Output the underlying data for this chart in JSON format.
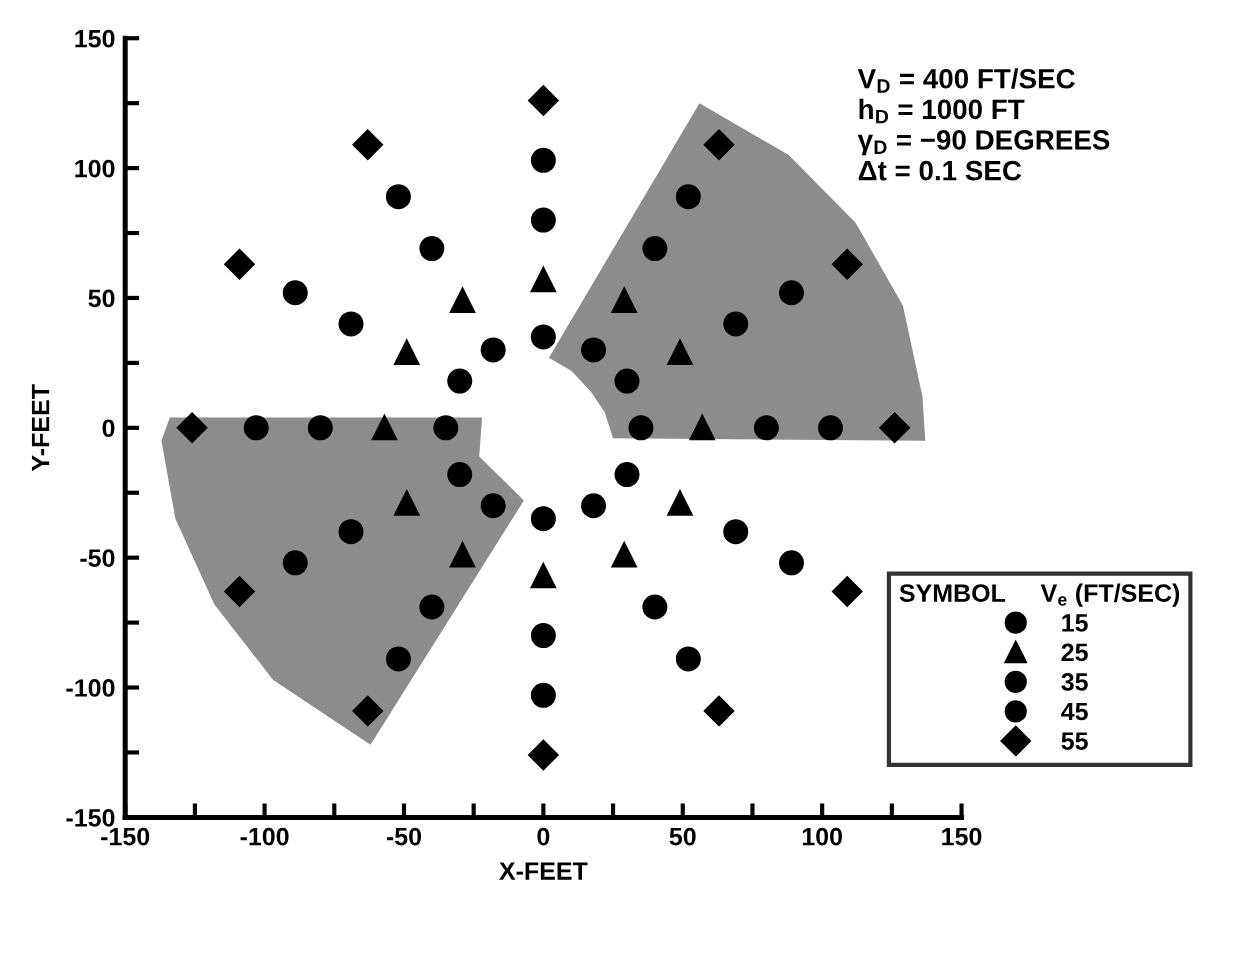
{
  "chart_data": {
    "type": "scatter",
    "xlabel": "X-FEET",
    "ylabel": "Y-FEET",
    "xlim": [
      -150,
      150
    ],
    "ylim": [
      -150,
      150
    ],
    "xticks": [
      -150,
      {
        "value": -125,
        "label": null
      },
      -100,
      {
        "value": -75,
        "label": null
      },
      -50,
      {
        "value": -25,
        "label": null
      },
      0,
      {
        "value": 25,
        "label": null
      },
      50,
      {
        "value": 75,
        "label": null
      },
      100,
      {
        "value": 125,
        "label": null
      },
      150
    ],
    "yticks": [
      -150,
      {
        "value": -125,
        "label": null
      },
      -100,
      {
        "value": -75,
        "label": null
      },
      -50,
      {
        "value": -25,
        "label": null
      },
      0,
      {
        "value": 25,
        "label": null
      },
      50,
      {
        "value": 75,
        "label": null
      },
      100,
      {
        "value": 125,
        "label": null
      },
      150
    ],
    "grid": false,
    "legend": "right",
    "legend_title": "SYMBOL     V$_{e}$ (FT/SEC)",
    "annotations": [
      "V$_{D}$ = 400 FT/SEC",
      "h$_{D}$ = 1000 FT",
      "γ$_{D}$ = −90 DEGREES",
      "Δt = 0.1 SEC"
    ],
    "series": [
      {
        "type": "area",
        "color": "#8c8c8c",
        "x": [
          56,
          88,
          112,
          129,
          136,
          137,
          25,
          22,
          17,
          10,
          2
        ],
        "values": [
          125,
          105,
          79,
          47,
          12,
          -5,
          -4,
          6,
          14,
          22,
          27
        ]
      },
      {
        "type": "area",
        "color": "#8c8c8c",
        "x": [
          -134,
          -22,
          -23,
          -7,
          -62,
          -97,
          -118,
          -132,
          -137
        ],
        "values": [
          4,
          4,
          -11,
          -28,
          -122,
          -97,
          -68,
          -35,
          -5
        ]
      },
      {
        "name": "15",
        "color": "#000000",
        "marker": "circle",
        "x": [
          35,
          30,
          18,
          0,
          -18,
          -30,
          -35,
          -30,
          -18,
          0,
          18,
          30
        ],
        "values": [
          0,
          18,
          30,
          35,
          30,
          18,
          0,
          -18,
          -30,
          -35,
          -30,
          -18
        ]
      },
      {
        "name": "25",
        "color": "#000000",
        "marker": "triangle",
        "x": [
          57,
          49,
          29,
          0,
          -29,
          -49,
          -57,
          -49,
          -29,
          0,
          29,
          49
        ],
        "values": [
          0,
          29,
          49,
          57,
          49,
          29,
          0,
          -29,
          -49,
          -57,
          -49,
          -29
        ]
      },
      {
        "name": "35",
        "color": "#000000",
        "marker": "circle",
        "x": [
          80,
          69,
          40,
          0,
          -40,
          -69,
          -80,
          -69,
          -40,
          0,
          40,
          69
        ],
        "values": [
          0,
          40,
          69,
          80,
          69,
          40,
          0,
          -40,
          -69,
          -80,
          -69,
          -40
        ]
      },
      {
        "name": "45",
        "color": "#000000",
        "marker": "circle",
        "x": [
          103,
          89,
          52,
          0,
          -52,
          -89,
          -103,
          -89,
          -52,
          0,
          52,
          89
        ],
        "values": [
          0,
          52,
          89,
          103,
          89,
          52,
          0,
          -52,
          -89,
          -103,
          -89,
          -52
        ]
      },
      {
        "name": "55",
        "color": "#000000",
        "marker": "diamond",
        "x": [
          126,
          109,
          63,
          0,
          -63,
          -109,
          -126,
          -109,
          -63,
          0,
          63,
          109
        ],
        "values": [
          0,
          63,
          109,
          126,
          109,
          63,
          0,
          -63,
          -109,
          -126,
          -109,
          -63
        ]
      }
    ]
  }
}
